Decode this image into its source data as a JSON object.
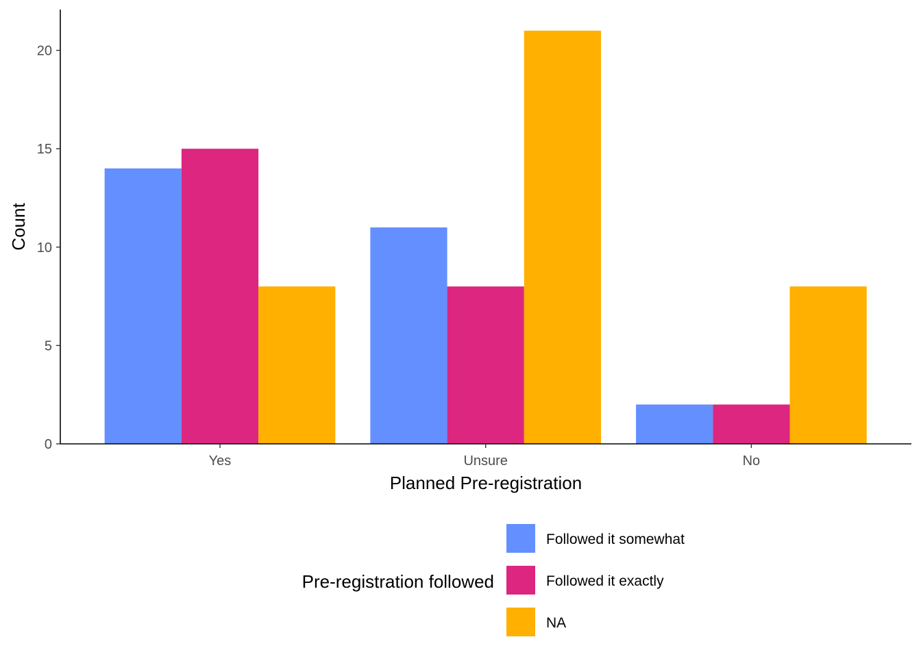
{
  "chart_data": {
    "type": "bar",
    "title": "",
    "xlabel": "Planned Pre-registration",
    "ylabel": "Count",
    "categories": [
      "Yes",
      "Unsure",
      "No"
    ],
    "series": [
      {
        "name": "Followed it somewhat",
        "color": "#648FFF",
        "values": [
          14,
          11,
          2
        ]
      },
      {
        "name": "Followed it exactly",
        "color": "#DC267F",
        "values": [
          15,
          8,
          2
        ]
      },
      {
        "name": "NA",
        "color": "#FFB000",
        "values": [
          8,
          21,
          8
        ]
      }
    ],
    "ylim": [
      0,
      22
    ],
    "yticks": [
      0,
      5,
      10,
      15,
      20
    ],
    "ytick_labels": [
      "0",
      "5",
      "10",
      "15",
      "20"
    ],
    "grid": false,
    "legend": {
      "title": "Pre-registration followed",
      "position": "bottom"
    }
  }
}
